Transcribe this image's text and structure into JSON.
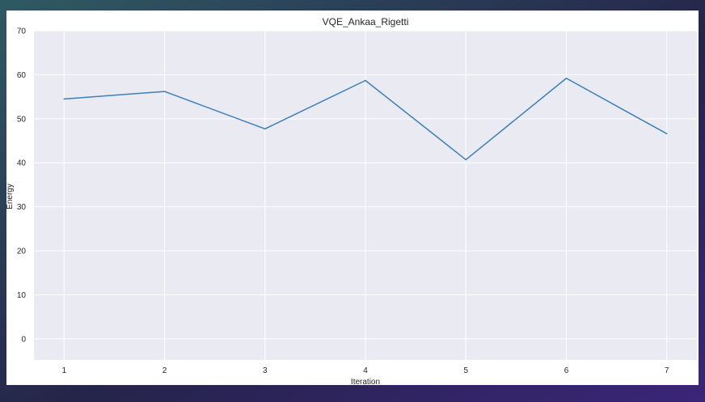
{
  "colors": {
    "plot_background": "#eaeaf2",
    "grid": "#ffffff",
    "line": "#3b80b9",
    "text": "#262626",
    "frame_gradient_start": "#2f5a63",
    "frame_gradient_mid": "#25244a",
    "frame_gradient_end": "#3a2578"
  },
  "chart_data": {
    "type": "line",
    "title": "VQE_Ankaa_Rigetti",
    "xlabel": "Iteration",
    "ylabel": "Energy",
    "x": [
      1,
      2,
      3,
      4,
      5,
      6,
      7
    ],
    "series": [
      {
        "values": [
          54.5,
          56.2,
          47.7,
          58.7,
          40.7,
          59.2,
          46.6
        ]
      }
    ],
    "xticks": [
      "1",
      "2",
      "3",
      "4",
      "5",
      "6",
      "7"
    ],
    "yticks": [
      "0",
      "10",
      "20",
      "30",
      "40",
      "50",
      "60",
      "70"
    ],
    "xlim": [
      0.7,
      7.3
    ],
    "ylim": [
      -4.8,
      70
    ],
    "grid": true,
    "legend": "none"
  }
}
